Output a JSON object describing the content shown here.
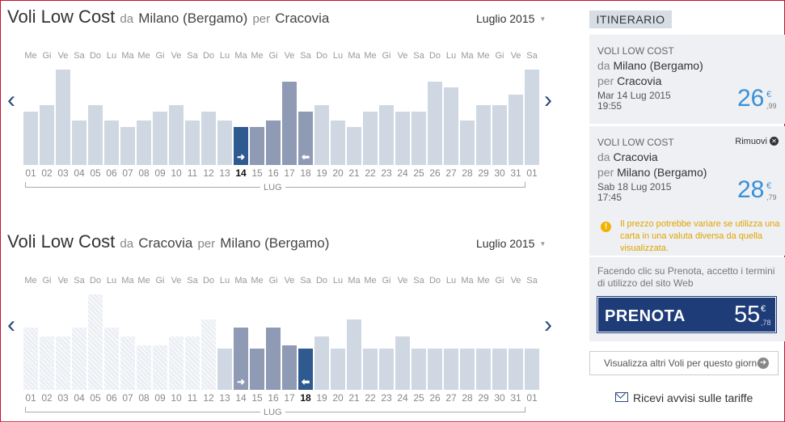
{
  "colors": {
    "accent": "#2f5a8f",
    "bar": "#cfd8e2",
    "bar_range": "#8f9ab5",
    "price": "#3a8fd6",
    "warning": "#e0a400",
    "book_bg": "#1e3c78"
  },
  "day_labels": [
    "Me",
    "Gi",
    "Ve",
    "Sa",
    "Do",
    "Lu",
    "Ma",
    "Me",
    "Gi",
    "Ve",
    "Sa",
    "Do",
    "Lu",
    "Ma",
    "Me",
    "Gi",
    "Ve",
    "Sa",
    "Do",
    "Lu",
    "Ma",
    "Me",
    "Gi",
    "Ve",
    "Sa",
    "Do",
    "Lu",
    "Ma",
    "Me",
    "Gi",
    "Ve",
    "Sa"
  ],
  "date_labels": [
    "01",
    "02",
    "03",
    "04",
    "05",
    "06",
    "07",
    "08",
    "09",
    "10",
    "11",
    "12",
    "13",
    "14",
    "15",
    "16",
    "17",
    "18",
    "19",
    "20",
    "21",
    "22",
    "23",
    "24",
    "25",
    "26",
    "27",
    "28",
    "29",
    "30",
    "31",
    "01"
  ],
  "outbound": {
    "title": "Voli Low Cost",
    "from_word": "da",
    "from": "Milano (Bergamo)",
    "to_word": "per",
    "to": "Cracovia",
    "month": "Luglio 2015",
    "caret_icon": "▼",
    "month_label": "LUG",
    "selected_date": "14",
    "bar_levels": [
      0.56,
      0.63,
      1.0,
      0.47,
      0.63,
      0.47,
      0.4,
      0.47,
      0.56,
      0.63,
      0.47,
      0.56,
      0.47,
      0.4,
      0.4,
      0.47,
      0.87,
      0.56,
      0.63,
      0.47,
      0.4,
      0.56,
      0.63,
      0.56,
      0.56,
      0.87,
      0.81,
      0.47,
      0.63,
      0.63,
      0.74,
      1.0
    ],
    "bar_kind": [
      "n",
      "n",
      "n",
      "n",
      "n",
      "n",
      "n",
      "n",
      "n",
      "n",
      "n",
      "n",
      "n",
      "d",
      "m",
      "m",
      "m",
      "m",
      "n",
      "n",
      "n",
      "n",
      "n",
      "n",
      "n",
      "n",
      "n",
      "n",
      "n",
      "n",
      "n",
      "n"
    ]
  },
  "inbound": {
    "title": "Voli Low Cost",
    "from_word": "da",
    "from": "Cracovia",
    "to_word": "per",
    "to": "Milano (Bergamo)",
    "month": "Luglio 2015",
    "caret_icon": "▼",
    "month_label": "LUG",
    "selected_date": "18",
    "bar_levels": [
      0.65,
      0.56,
      0.56,
      0.65,
      1.0,
      0.65,
      0.56,
      0.47,
      0.47,
      0.56,
      0.56,
      0.74,
      0.43,
      0.65,
      0.43,
      0.65,
      0.47,
      0.43,
      0.56,
      0.43,
      0.74,
      0.43,
      0.43,
      0.56,
      0.43,
      0.43,
      0.43,
      0.43,
      0.43,
      0.43,
      0.43,
      0.43
    ],
    "bar_kind": [
      "h",
      "h",
      "h",
      "h",
      "h",
      "h",
      "h",
      "h",
      "h",
      "h",
      "h",
      "h",
      "n",
      "m",
      "m",
      "m",
      "m",
      "d",
      "n",
      "n",
      "n",
      "n",
      "n",
      "n",
      "n",
      "n",
      "n",
      "n",
      "n",
      "n",
      "n",
      "n"
    ]
  },
  "itinerary": {
    "header": "ITINERARIO",
    "outbound": {
      "label": "VOLI LOW COST",
      "from_word": "da",
      "from": "Milano (Bergamo)",
      "to_word": "per",
      "to": "Cracovia",
      "date": "Mar 14 Lug 2015",
      "time": "19:55",
      "price": "26",
      "currency": "€",
      "cents": ",99"
    },
    "inbound": {
      "label": "VOLI LOW COST",
      "remove": "Rimuovi",
      "from_word": "da",
      "from": "Cracovia",
      "to_word": "per",
      "to": "Milano (Bergamo)",
      "date": "Sab 18 Lug 2015",
      "time": "17:45",
      "price": "28",
      "currency": "€",
      "cents": ",79"
    },
    "warning": "Il prezzo potrebbe variare se utilizza una carta in una valuta diversa da quella visualizzata.",
    "terms": "Facendo clic su Prenota, accetto i termini di utilizzo del sito Web",
    "book_label": "PRENOTA",
    "book_price": "55",
    "book_currency": "€",
    "book_cents": ",78",
    "more_flights": "Visualizza altri Voli per questo giorno",
    "alerts": "Ricevi avvisi sulle tariffe"
  }
}
